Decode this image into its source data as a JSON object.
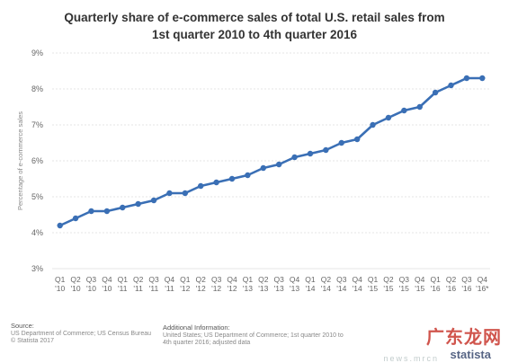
{
  "chart_data": {
    "type": "line",
    "title": "Quarterly share of e-commerce sales of total U.S. retail sales from 1st quarter 2010 to 4th quarter 2016",
    "title_lines": [
      "Quarterly share of e-commerce sales of total U.S. retail sales from",
      "1st quarter 2010 to 4th quarter 2016"
    ],
    "ylabel": "Percentage of e-commerce sales",
    "xlabel": "",
    "ylim": [
      3,
      9
    ],
    "yticks": [
      3,
      4,
      5,
      6,
      7,
      8,
      9
    ],
    "ytick_labels": [
      "3%",
      "4%",
      "5%",
      "6%",
      "7%",
      "8%",
      "9%"
    ],
    "grid": "horizontal",
    "line_color": "#3a6fb5",
    "categories": [
      [
        "Q1",
        "'10"
      ],
      [
        "Q2",
        "'10"
      ],
      [
        "Q3",
        "'10"
      ],
      [
        "Q4",
        "'10"
      ],
      [
        "Q1",
        "'11"
      ],
      [
        "Q2",
        "'11"
      ],
      [
        "Q3",
        "'11"
      ],
      [
        "Q4",
        "'11"
      ],
      [
        "Q1",
        "'12"
      ],
      [
        "Q2",
        "'12"
      ],
      [
        "Q3",
        "'12"
      ],
      [
        "Q4",
        "'12"
      ],
      [
        "Q1",
        "'13"
      ],
      [
        "Q2",
        "'13"
      ],
      [
        "Q3",
        "'13"
      ],
      [
        "Q4",
        "'13"
      ],
      [
        "Q1",
        "'14"
      ],
      [
        "Q2",
        "'14"
      ],
      [
        "Q3",
        "'14"
      ],
      [
        "Q4",
        "'14"
      ],
      [
        "Q1",
        "'15"
      ],
      [
        "Q2",
        "'15"
      ],
      [
        "Q3",
        "'15"
      ],
      [
        "Q4",
        "'15"
      ],
      [
        "Q1",
        "'16"
      ],
      [
        "Q2",
        "'16"
      ],
      [
        "Q3",
        "'16"
      ],
      [
        "Q4",
        "'16*"
      ]
    ],
    "values": [
      4.2,
      4.4,
      4.6,
      4.6,
      4.7,
      4.8,
      4.9,
      5.1,
      5.1,
      5.3,
      5.4,
      5.5,
      5.6,
      5.8,
      5.9,
      6.1,
      6.2,
      6.3,
      6.5,
      6.6,
      7.0,
      7.2,
      7.4,
      7.5,
      7.9,
      8.1,
      8.3,
      8.3
    ]
  },
  "footer": {
    "source_head": "Source:",
    "source_lines": [
      "US Department of Commerce; US Census Bureau",
      "© Statista 2017"
    ],
    "info_head": "Additional Information:",
    "info_lines": [
      "United States; US Department of Commerce; 1st quarter 2010 to",
      "4th quarter 2016; adjusted data"
    ]
  },
  "watermark": {
    "cn": "广东龙网",
    "brand": "statista",
    "url": "news.mrcn"
  }
}
